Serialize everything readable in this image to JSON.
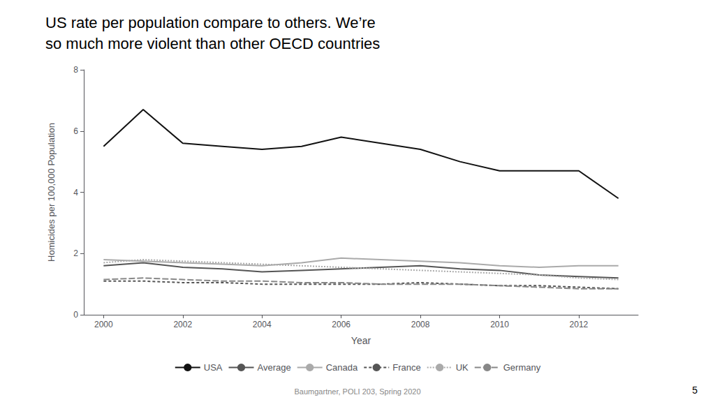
{
  "chart_data": {
    "type": "line",
    "title": "US rate per population compare to others. We’re\nso much more violent than other OECD countries",
    "xlabel": "Year",
    "ylabel": "Homicides per 100,000 Population",
    "annotations": [
      "Baumgartner, POLI 203, Spring 2020",
      "5"
    ],
    "x": [
      2000,
      2001,
      2002,
      2003,
      2004,
      2005,
      2006,
      2007,
      2008,
      2009,
      2010,
      2011,
      2012,
      2013
    ],
    "series": [
      {
        "name": "USA",
        "color": "#111111",
        "line_style": "solid",
        "values": [
          5.5,
          6.7,
          5.6,
          5.5,
          5.4,
          5.5,
          5.8,
          5.6,
          5.4,
          5.0,
          4.7,
          4.7,
          4.7,
          3.8
        ]
      },
      {
        "name": "Average",
        "color": "#555555",
        "line_style": "solid",
        "values": [
          1.6,
          1.7,
          1.55,
          1.5,
          1.4,
          1.45,
          1.5,
          1.55,
          1.6,
          1.5,
          1.45,
          1.3,
          1.25,
          1.2
        ]
      },
      {
        "name": "Canada",
        "color": "#aaaaaa",
        "line_style": "solid",
        "values": [
          1.8,
          1.75,
          1.7,
          1.65,
          1.6,
          1.7,
          1.85,
          1.8,
          1.75,
          1.7,
          1.6,
          1.55,
          1.6,
          1.6
        ]
      },
      {
        "name": "France",
        "color": "#555555",
        "line_style": "dashed",
        "values": [
          1.1,
          1.1,
          1.05,
          1.05,
          1.0,
          1.0,
          1.0,
          1.0,
          1.05,
          1.0,
          0.95,
          0.95,
          0.9,
          0.85
        ]
      },
      {
        "name": "UK",
        "color": "#aaaaaa",
        "line_style": "dotted",
        "values": [
          1.7,
          1.8,
          1.75,
          1.7,
          1.65,
          1.6,
          1.55,
          1.5,
          1.45,
          1.4,
          1.35,
          1.3,
          1.2,
          1.15
        ]
      },
      {
        "name": "Germany",
        "color": "#888888",
        "line_style": "longdash",
        "values": [
          1.15,
          1.2,
          1.15,
          1.1,
          1.1,
          1.05,
          1.05,
          1.0,
          1.0,
          1.0,
          0.95,
          0.9,
          0.85,
          0.85
        ]
      }
    ],
    "xlim": [
      1999.5,
      2013.5
    ],
    "xticks": [
      2000,
      2002,
      2004,
      2006,
      2008,
      2010,
      2012
    ],
    "ylim": [
      0,
      8
    ],
    "yticks": [
      0,
      2,
      4,
      6,
      8
    ],
    "grid": false,
    "legend": "bottom"
  }
}
